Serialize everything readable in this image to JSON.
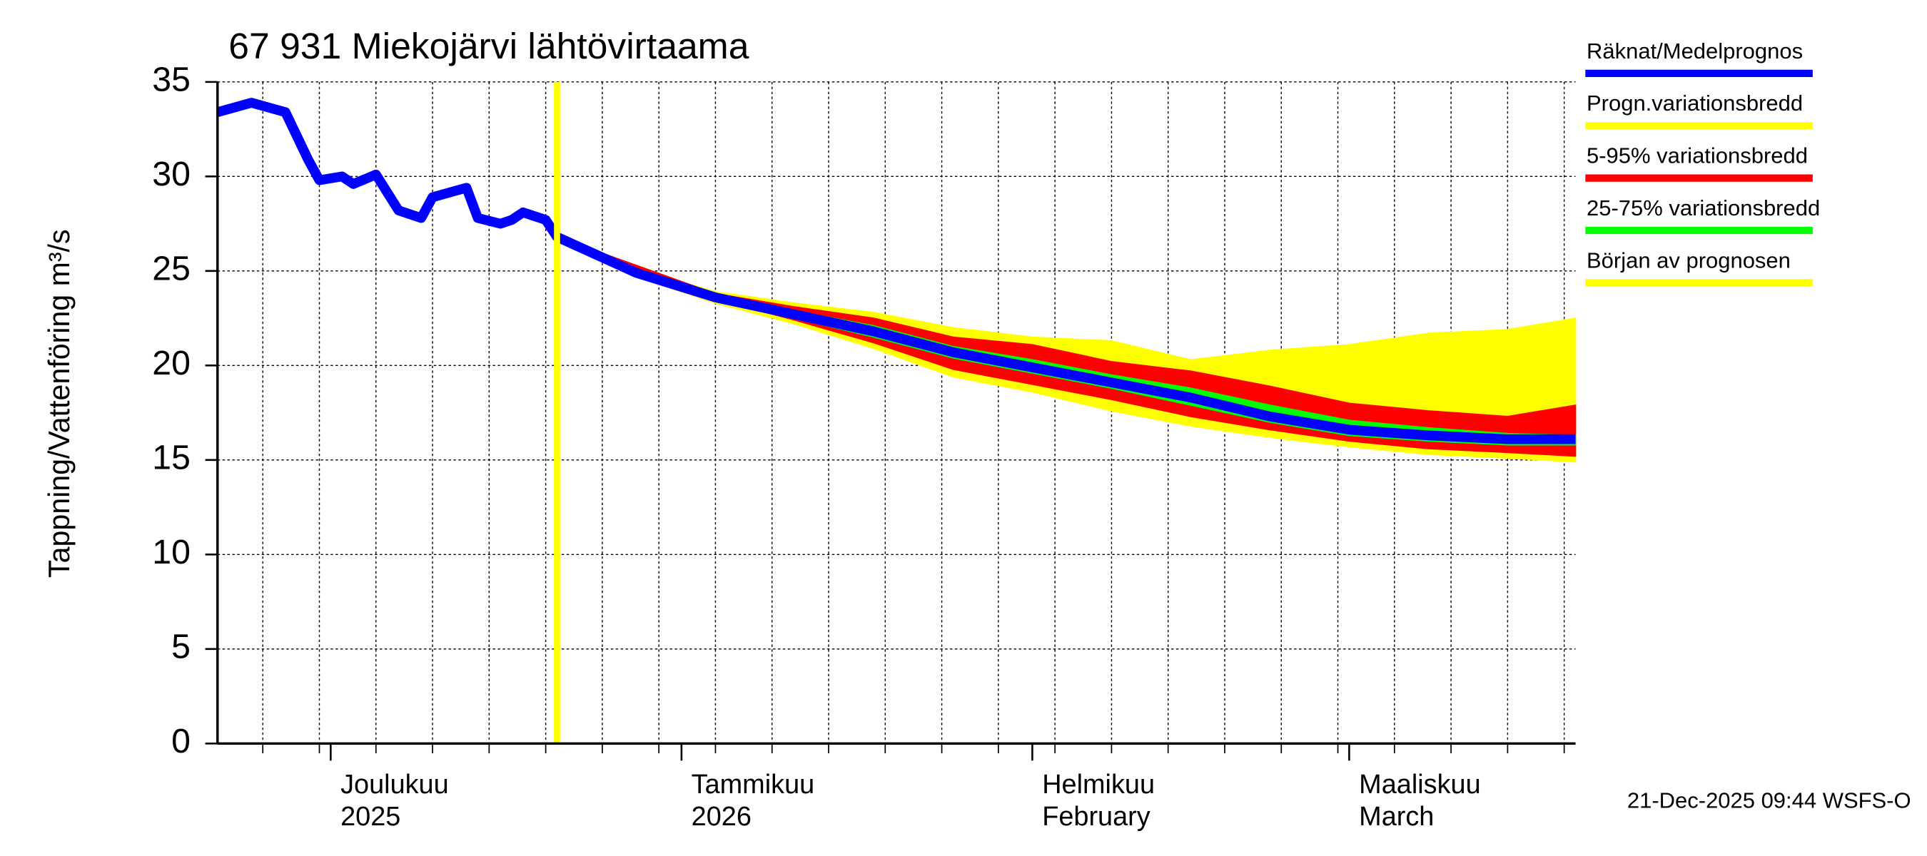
{
  "chart_data": {
    "type": "band-line",
    "title": "67 931 Miekojärvi lähtövirtaama",
    "ylabel": "Tappning/Vattenföring m³/s",
    "footer": "21-Dec-2025 09:44 WSFS-O",
    "xlim": [
      "2025-11-21",
      "2026-03-21"
    ],
    "ylim": [
      0,
      35
    ],
    "yticks": [
      0,
      5,
      10,
      15,
      20,
      25,
      30,
      35
    ],
    "grid": true,
    "xticks": [
      {
        "value": "2025-12-01",
        "label": "Joulukuu",
        "sublabel": "2025"
      },
      {
        "value": "2026-01-01",
        "label": "Tammikuu",
        "sublabel": "2026"
      },
      {
        "value": "2026-02-01",
        "label": "Helmikuu",
        "sublabel": "February"
      },
      {
        "value": "2026-03-01",
        "label": "Maaliskuu",
        "sublabel": "March"
      }
    ],
    "xgrid": [
      "2025-11-25",
      "2025-11-30",
      "2025-12-05",
      "2025-12-10",
      "2025-12-15",
      "2025-12-20",
      "2025-12-25",
      "2025-12-30",
      "2026-01-04",
      "2026-01-09",
      "2026-01-14",
      "2026-01-19",
      "2026-01-24",
      "2026-01-29",
      "2026-02-03",
      "2026-02-08",
      "2026-02-13",
      "2026-02-18",
      "2026-02-23",
      "2026-02-28",
      "2026-03-05",
      "2026-03-10",
      "2026-03-15",
      "2026-03-20"
    ],
    "forecast_x": [
      "2025-12-21",
      "2025-12-28",
      "2026-01-04",
      "2026-01-11",
      "2026-01-18",
      "2026-01-25",
      "2026-02-01",
      "2026-02-08",
      "2026-02-15",
      "2026-02-22",
      "2026-03-01",
      "2026-03-08",
      "2026-03-15",
      "2026-03-21"
    ],
    "series": [
      {
        "name": "Räknat/Medelprognos",
        "color": "#0000ff",
        "kind": "line",
        "x": [
          "2025-11-21",
          "2025-11-24",
          "2025-11-27",
          "2025-11-29",
          "2025-11-30",
          "2025-12-02",
          "2025-12-03",
          "2025-12-05",
          "2025-12-07",
          "2025-12-09",
          "2025-12-10",
          "2025-12-13",
          "2025-12-14",
          "2025-12-16",
          "2025-12-17",
          "2025-12-18",
          "2025-12-20",
          "2025-12-21",
          "2025-12-28",
          "2026-01-04",
          "2026-01-11",
          "2026-01-18",
          "2026-01-25",
          "2026-02-01",
          "2026-02-08",
          "2026-02-15",
          "2026-02-22",
          "2026-03-01",
          "2026-03-08",
          "2026-03-15",
          "2026-03-21"
        ],
        "values": [
          33.4,
          33.9,
          33.4,
          30.9,
          29.8,
          30.0,
          29.6,
          30.1,
          28.2,
          27.8,
          28.9,
          29.4,
          27.8,
          27.5,
          27.7,
          28.1,
          27.7,
          26.8,
          24.9,
          23.6,
          22.7,
          21.8,
          20.7,
          19.9,
          19.1,
          18.3,
          17.3,
          16.6,
          16.3,
          16.1,
          16.1
        ]
      },
      {
        "name": "Progn.variationsbredd",
        "color": "#ffff00",
        "kind": "band",
        "upper": [
          26.8,
          25.1,
          23.9,
          23.3,
          22.8,
          22.0,
          21.5,
          21.3,
          20.3,
          20.8,
          21.1,
          21.7,
          21.9,
          22.5
        ],
        "lower": [
          26.8,
          24.7,
          23.3,
          22.2,
          20.9,
          19.4,
          18.6,
          17.6,
          16.8,
          16.2,
          15.7,
          15.3,
          15.1,
          14.9
        ]
      },
      {
        "name": "5-95% variationsbredd",
        "color": "#ff0000",
        "kind": "band",
        "upper": [
          26.8,
          25.3,
          23.8,
          23.1,
          22.5,
          21.5,
          21.1,
          20.2,
          19.7,
          18.9,
          18.0,
          17.6,
          17.3,
          17.9
        ],
        "lower": [
          26.8,
          24.8,
          23.5,
          22.4,
          21.2,
          19.8,
          19.0,
          18.2,
          17.3,
          16.6,
          16.0,
          15.6,
          15.4,
          15.2
        ]
      },
      {
        "name": "25-75% variationsbredd",
        "color": "#00ff00",
        "kind": "band",
        "upper": [
          26.8,
          25.0,
          23.7,
          22.9,
          22.1,
          21.0,
          20.3,
          19.5,
          18.8,
          17.9,
          17.1,
          16.7,
          16.4,
          16.3
        ],
        "lower": [
          26.8,
          24.9,
          23.5,
          22.5,
          21.5,
          20.4,
          19.6,
          18.8,
          17.9,
          17.0,
          16.3,
          16.0,
          15.8,
          15.8
        ]
      },
      {
        "name": "Början av prognosen",
        "color": "#ffff00",
        "kind": "vline",
        "x": "2025-12-21"
      }
    ]
  }
}
